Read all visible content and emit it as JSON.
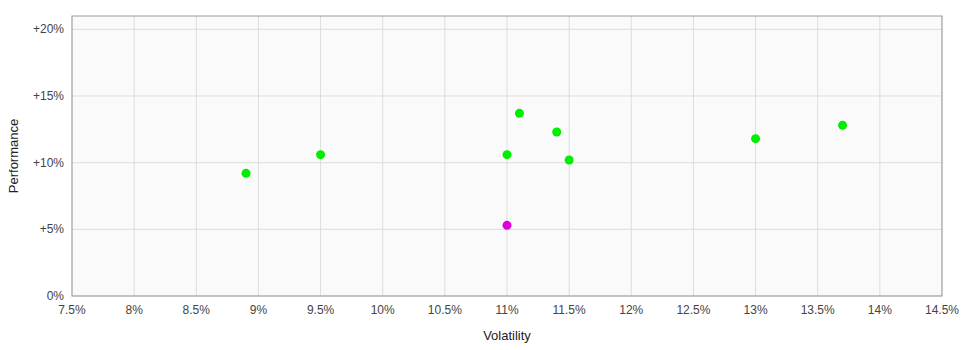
{
  "chart_data": {
    "type": "scatter",
    "xlabel": "Volatility",
    "ylabel": "Performance",
    "xlim": [
      0.075,
      0.145
    ],
    "ylim": [
      0.0,
      0.21
    ],
    "xticks": [
      {
        "value": 0.075,
        "label": "7.5%"
      },
      {
        "value": 0.08,
        "label": "8%"
      },
      {
        "value": 0.085,
        "label": "8.5%"
      },
      {
        "value": 0.09,
        "label": "9%"
      },
      {
        "value": 0.095,
        "label": "9.5%"
      },
      {
        "value": 0.1,
        "label": "10%"
      },
      {
        "value": 0.105,
        "label": "10.5%"
      },
      {
        "value": 0.11,
        "label": "11%"
      },
      {
        "value": 0.115,
        "label": "11.5%"
      },
      {
        "value": 0.12,
        "label": "12%"
      },
      {
        "value": 0.125,
        "label": "12.5%"
      },
      {
        "value": 0.13,
        "label": "13%"
      },
      {
        "value": 0.135,
        "label": "13.5%"
      },
      {
        "value": 0.14,
        "label": "14%"
      },
      {
        "value": 0.145,
        "label": "14.5%"
      }
    ],
    "yticks": [
      {
        "value": 0.0,
        "label": "0%"
      },
      {
        "value": 0.05,
        "label": "+5%"
      },
      {
        "value": 0.1,
        "label": "+10%"
      },
      {
        "value": 0.15,
        "label": "+15%"
      },
      {
        "value": 0.2,
        "label": "+20%"
      }
    ],
    "grid": true,
    "series": [
      {
        "color": "#00ee00",
        "x": [
          0.089,
          0.095,
          0.11,
          0.111,
          0.114,
          0.115,
          0.13,
          0.137
        ],
        "values": [
          0.092,
          0.106,
          0.106,
          0.137,
          0.123,
          0.102,
          0.118,
          0.128
        ]
      },
      {
        "color": "#dd00dd",
        "x": [
          0.11
        ],
        "values": [
          0.053
        ]
      }
    ]
  }
}
